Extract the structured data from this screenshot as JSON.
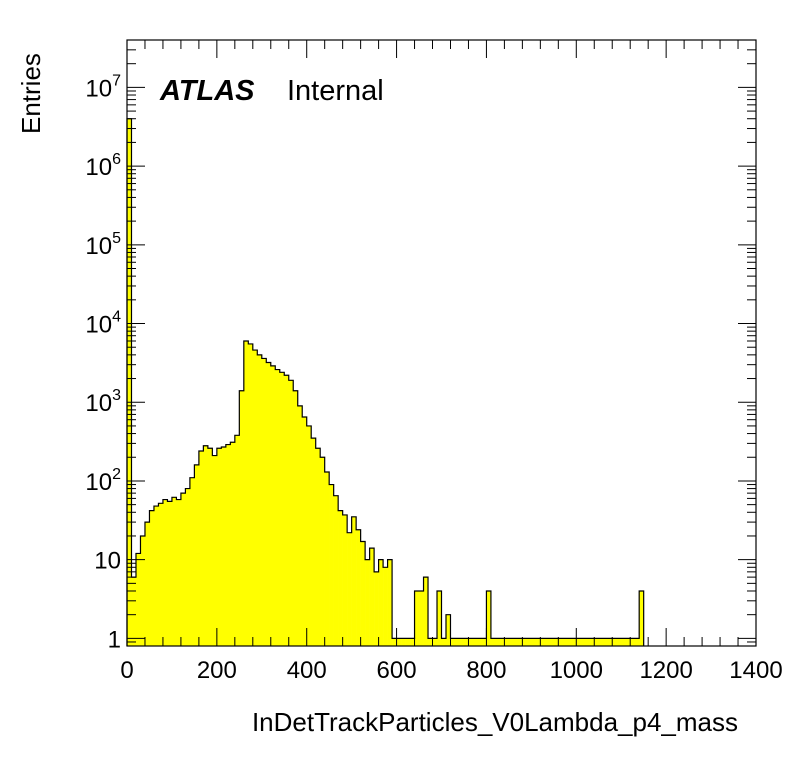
{
  "chart_data": {
    "type": "bar",
    "subtype": "histogram",
    "xlabel": "InDetTrackParticles_V0Lambda_p4_mass",
    "ylabel": "Entries",
    "xlim": [
      0,
      1400
    ],
    "ylim": [
      0.8,
      40000000
    ],
    "y_scale": "log",
    "bin_width": 10,
    "fill_color": "#ffff00",
    "line_color": "#000000",
    "label": {
      "bold": "ATLAS",
      "text": "Internal"
    },
    "x_ticks": [
      0,
      200,
      400,
      600,
      800,
      1000,
      1200,
      1400
    ],
    "x_tick_labels": [
      "0",
      "200",
      "400",
      "600",
      "800",
      "1000",
      "1200",
      "1400"
    ],
    "y_ticks": [
      {
        "value": 1,
        "base": "1",
        "exp": ""
      },
      {
        "value": 10,
        "base": "10",
        "exp": ""
      },
      {
        "value": 100,
        "base": "10",
        "exp": "2"
      },
      {
        "value": 1000,
        "base": "10",
        "exp": "3"
      },
      {
        "value": 10000,
        "base": "10",
        "exp": "4"
      },
      {
        "value": 100000,
        "base": "10",
        "exp": "5"
      },
      {
        "value": 1000000,
        "base": "10",
        "exp": "6"
      },
      {
        "value": 10000000,
        "base": "10",
        "exp": "7"
      }
    ],
    "bins_low_edge": [
      0,
      10,
      20,
      30,
      40,
      50,
      60,
      70,
      80,
      90,
      100,
      110,
      120,
      130,
      140,
      150,
      160,
      170,
      180,
      190,
      200,
      210,
      220,
      230,
      240,
      250,
      260,
      270,
      280,
      290,
      300,
      310,
      320,
      330,
      340,
      350,
      360,
      370,
      380,
      390,
      400,
      410,
      420,
      430,
      440,
      450,
      460,
      470,
      480,
      490,
      500,
      510,
      520,
      530,
      540,
      550,
      560,
      570,
      580,
      590,
      600,
      610,
      620,
      630,
      640,
      650,
      660,
      670,
      680,
      690,
      700,
      710,
      720,
      730,
      740,
      750,
      760,
      770,
      780,
      790,
      800,
      810,
      820,
      830,
      840,
      850,
      860,
      870,
      880,
      890,
      900,
      910,
      920,
      930,
      940,
      950,
      960,
      970,
      980,
      990,
      1000,
      1010,
      1020,
      1030,
      1040,
      1050,
      1060,
      1070,
      1080,
      1090,
      1100,
      1110,
      1120,
      1130,
      1140
    ],
    "values": [
      4000000,
      6,
      12,
      20,
      30,
      42,
      48,
      52,
      58,
      55,
      62,
      58,
      70,
      80,
      110,
      160,
      240,
      280,
      260,
      210,
      260,
      270,
      290,
      310,
      380,
      1400,
      6000,
      5500,
      4600,
      4000,
      3600,
      3200,
      2900,
      2600,
      2400,
      2200,
      1900,
      1400,
      900,
      650,
      500,
      350,
      260,
      200,
      130,
      90,
      65,
      42,
      37,
      22,
      35,
      24,
      17,
      10,
      14,
      7,
      10,
      8,
      10,
      1,
      1,
      1,
      1,
      1,
      4,
      4,
      6,
      1,
      1,
      4,
      1,
      2,
      1,
      1,
      1,
      1,
      1,
      1,
      1,
      1,
      4,
      1,
      1,
      1,
      1,
      1,
      1,
      1,
      1,
      1,
      1,
      1,
      1,
      1,
      1,
      1,
      1,
      1,
      1,
      1,
      1,
      1,
      1,
      1,
      1,
      1,
      1,
      1,
      1,
      1,
      1,
      1,
      1,
      1,
      4
    ]
  }
}
